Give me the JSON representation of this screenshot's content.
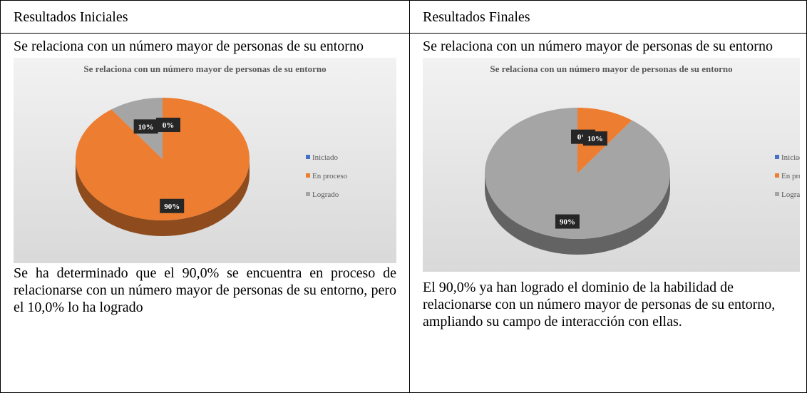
{
  "table": {
    "headers": [
      "Resultados Iniciales",
      "Resultados Finales"
    ],
    "cells": [
      {
        "heading": "Se relaciona con un número mayor de personas de su entorno",
        "chart_data": {
          "type": "pie",
          "title": "Se relaciona con un número mayor de personas de su entorno",
          "categories": [
            "Iniciado",
            "En proceso",
            "Logrado"
          ],
          "values": [
            0,
            90,
            10
          ],
          "value_labels": [
            "0%",
            "90%",
            "10%"
          ],
          "colors": [
            "#4472c4",
            "#ed7d31",
            "#a5a5a5"
          ],
          "legend": "right"
        },
        "description": "Se ha determinado que el 90,0% se encuentra en proceso de relacionarse con un número mayor de personas de su entorno, pero el 10,0% lo ha logrado"
      },
      {
        "heading": "Se relaciona con un número mayor de personas de su entorno",
        "chart_data": {
          "type": "pie",
          "title": "Se relaciona con un número mayor de personas de su entorno",
          "categories": [
            "Iniciado",
            "En proceso",
            "Logrado"
          ],
          "values": [
            0,
            10,
            90
          ],
          "value_labels": [
            "0%",
            "10%",
            "90%"
          ],
          "colors": [
            "#4472c4",
            "#ed7d31",
            "#a5a5a5"
          ],
          "legend": "right"
        },
        "description": "El 90,0% ya han logrado el dominio de la habilidad de relacionarse con un número mayor de personas de su entorno, ampliando su campo de interacción con ellas."
      }
    ]
  }
}
